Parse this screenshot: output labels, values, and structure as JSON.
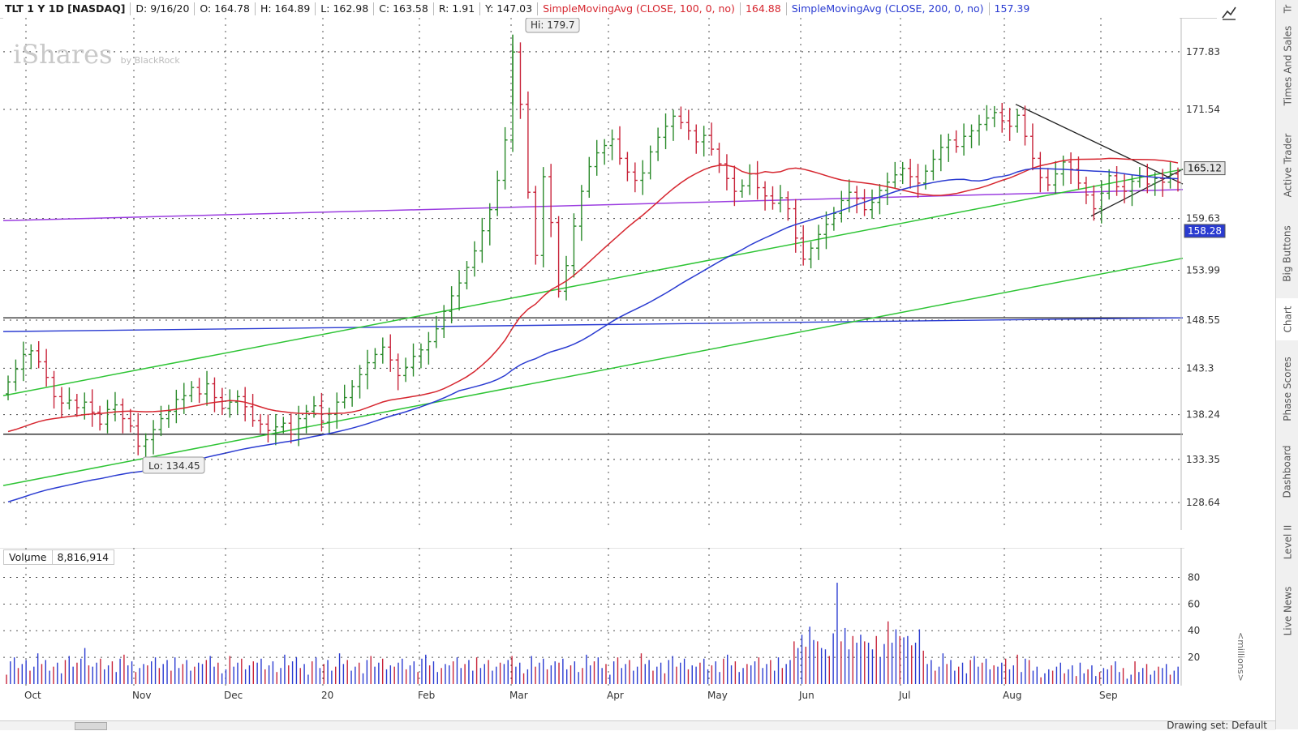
{
  "header": {
    "symbol": "TLT 1 Y 1D [NASDAQ]",
    "date": "D: 9/16/20",
    "open": "O: 164.78",
    "high": "H: 164.89",
    "low": "L: 162.98",
    "close": "C: 163.58",
    "range": "R: 1.91",
    "y": "Y: 147.03",
    "sma100_label": "SimpleMovingAvg (CLOSE, 100, 0, no)",
    "sma100_value": "164.88",
    "sma200_label": "SimpleMovingAvg (CLOSE, 200, 0, no)",
    "sma200_value": "157.39"
  },
  "watermark": {
    "brand": "iShares",
    "sub": "by BlackRock"
  },
  "price_axis": {
    "ticks": [
      "177.83",
      "171.54",
      "159.63",
      "153.99",
      "148.55",
      "143.3",
      "138.24",
      "133.35",
      "128.64"
    ],
    "current_price": "165.12",
    "sma_marker": "158.28"
  },
  "annotations": {
    "high": "Hi: 179.7",
    "low": "Lo: 134.45"
  },
  "x_axis": {
    "months": [
      "Oct",
      "Nov",
      "Dec",
      "20",
      "Feb",
      "Mar",
      "Apr",
      "May",
      "Jun",
      "Jul",
      "Aug",
      "Sep"
    ]
  },
  "volume": {
    "label": "Volume",
    "value": "8,816,914",
    "ticks": [
      "80",
      "60",
      "40",
      "20"
    ],
    "unit": "<millions>"
  },
  "right_tabs": [
    "Times And Sales",
    "Active Trader",
    "Big Buttons",
    "Chart",
    "Phase Scores",
    "Dashboard",
    "Level II",
    "Live News"
  ],
  "right_tabs_top_partial": "Tr",
  "bottom": {
    "drawing_set": "Drawing set: Default"
  },
  "colors": {
    "sma100": "#d6262f",
    "sma200": "#2a3bd1",
    "trend_green": "#2ec435",
    "trend_purple": "#9b3de0",
    "up": "#2a8a2a",
    "down": "#c8243a",
    "price_tag_bg": "#2a3bd1"
  },
  "chart_data": {
    "type": "candlestick",
    "symbol": "TLT",
    "price_range": [
      126,
      181
    ],
    "high": 179.7,
    "low": 134.45,
    "bars": [
      [
        140.5,
        141.8
      ],
      [
        141.8,
        143.2
      ],
      [
        143.2,
        144.8
      ],
      [
        144.8,
        145.2
      ],
      [
        145.2,
        144.0
      ],
      [
        144.0,
        142.3
      ],
      [
        142.3,
        140.2
      ],
      [
        140.2,
        139.5
      ],
      [
        139.5,
        139.8
      ],
      [
        139.8,
        139.0
      ],
      [
        139.0,
        139.6
      ],
      [
        139.6,
        138.5
      ],
      [
        138.5,
        137.2
      ],
      [
        137.2,
        138.8
      ],
      [
        138.8,
        139.3
      ],
      [
        139.3,
        137.8
      ],
      [
        137.8,
        137.0
      ],
      [
        137.0,
        134.8
      ],
      [
        134.8,
        135.5
      ],
      [
        135.5,
        136.6
      ],
      [
        136.6,
        137.8
      ],
      [
        137.8,
        138.6
      ],
      [
        138.6,
        139.9
      ],
      [
        139.9,
        140.3
      ],
      [
        140.3,
        141.2
      ],
      [
        141.2,
        140.5
      ],
      [
        140.5,
        141.6
      ],
      [
        141.6,
        140.1
      ],
      [
        140.1,
        138.9
      ],
      [
        138.9,
        139.6
      ],
      [
        139.6,
        140.2
      ],
      [
        140.2,
        139.1
      ],
      [
        139.1,
        137.6
      ],
      [
        137.6,
        137.2
      ],
      [
        137.2,
        136.5
      ],
      [
        136.5,
        136.9
      ],
      [
        136.9,
        137.3
      ],
      [
        137.3,
        136.1
      ],
      [
        136.1,
        137.8
      ],
      [
        137.8,
        138.6
      ],
      [
        138.6,
        139.2
      ],
      [
        139.2,
        137.4
      ],
      [
        137.4,
        138.3
      ],
      [
        138.3,
        139.6
      ],
      [
        139.6,
        140.1
      ],
      [
        140.1,
        141.3
      ],
      [
        141.3,
        142.6
      ],
      [
        142.6,
        143.9
      ],
      [
        143.9,
        144.8
      ],
      [
        144.8,
        145.6
      ],
      [
        145.6,
        144.2
      ],
      [
        144.2,
        142.5
      ],
      [
        142.5,
        143.4
      ],
      [
        143.4,
        144.6
      ],
      [
        144.6,
        145.3
      ],
      [
        145.3,
        146.2
      ],
      [
        146.2,
        147.6
      ],
      [
        147.6,
        149.5
      ],
      [
        149.5,
        151.2
      ],
      [
        151.2,
        152.6
      ],
      [
        152.6,
        154.3
      ],
      [
        154.3,
        156.1
      ],
      [
        156.1,
        158.3
      ],
      [
        158.3,
        160.6
      ],
      [
        160.6,
        163.8
      ],
      [
        163.8,
        168.2
      ],
      [
        168.2,
        177.8
      ],
      [
        177.8,
        172.1
      ],
      [
        172.1,
        162.5
      ],
      [
        162.5,
        155.6
      ],
      [
        155.6,
        164.2
      ],
      [
        164.2,
        159.2
      ],
      [
        159.2,
        151.7
      ],
      [
        151.7,
        154.5
      ],
      [
        154.5,
        158.8
      ],
      [
        158.8,
        162.6
      ],
      [
        162.6,
        165.3
      ],
      [
        165.3,
        166.8
      ],
      [
        166.8,
        167.6
      ],
      [
        167.6,
        168.3
      ],
      [
        168.3,
        166.2
      ],
      [
        166.2,
        164.7
      ],
      [
        164.7,
        163.8
      ],
      [
        163.8,
        164.6
      ],
      [
        164.6,
        166.9
      ],
      [
        166.9,
        168.5
      ],
      [
        168.5,
        169.7
      ],
      [
        169.7,
        170.8
      ],
      [
        170.8,
        170.1
      ],
      [
        170.1,
        169.2
      ],
      [
        169.2,
        168.0
      ],
      [
        168.0,
        168.7
      ],
      [
        168.7,
        167.2
      ],
      [
        167.2,
        165.6
      ],
      [
        165.6,
        164.0
      ],
      [
        164.0,
        162.6
      ],
      [
        162.6,
        163.2
      ],
      [
        163.2,
        164.5
      ],
      [
        164.5,
        163.0
      ],
      [
        163.0,
        162.1
      ],
      [
        162.1,
        161.3
      ],
      [
        161.3,
        161.9
      ],
      [
        161.9,
        160.7
      ],
      [
        160.7,
        157.5
      ],
      [
        157.5,
        155.2
      ],
      [
        155.2,
        156.4
      ],
      [
        156.4,
        157.9
      ],
      [
        157.9,
        159.0
      ],
      [
        159.0,
        160.2
      ],
      [
        160.2,
        161.6
      ],
      [
        161.6,
        162.5
      ],
      [
        162.5,
        161.8
      ],
      [
        161.8,
        160.6
      ],
      [
        160.6,
        161.4
      ],
      [
        161.4,
        162.7
      ],
      [
        162.7,
        163.6
      ],
      [
        163.6,
        164.4
      ],
      [
        164.4,
        165.1
      ],
      [
        165.1,
        164.2
      ],
      [
        164.2,
        163.5
      ],
      [
        163.5,
        164.8
      ],
      [
        164.8,
        166.1
      ],
      [
        166.1,
        167.4
      ],
      [
        167.4,
        168.2
      ],
      [
        168.2,
        167.5
      ],
      [
        167.5,
        168.6
      ],
      [
        168.6,
        169.2
      ],
      [
        169.2,
        169.9
      ],
      [
        169.9,
        170.6
      ],
      [
        170.6,
        171.2
      ],
      [
        171.2,
        170.3
      ],
      [
        170.3,
        169.7
      ],
      [
        169.7,
        170.9
      ],
      [
        170.9,
        168.6
      ],
      [
        168.6,
        166.2
      ],
      [
        166.2,
        164.1
      ],
      [
        164.1,
        163.3
      ],
      [
        163.3,
        164.5
      ],
      [
        164.5,
        165.8
      ],
      [
        165.8,
        165.0
      ],
      [
        165.0,
        163.5
      ],
      [
        163.5,
        162.2
      ],
      [
        162.2,
        160.7
      ],
      [
        160.7,
        162.4
      ],
      [
        162.4,
        164.3
      ],
      [
        164.3,
        163.1
      ],
      [
        163.1,
        162.6
      ],
      [
        162.6,
        163.7
      ],
      [
        163.7,
        164.2
      ],
      [
        164.2,
        163.4
      ],
      [
        163.4,
        164.0
      ],
      [
        164.0,
        163.6
      ],
      [
        163.6,
        164.5
      ],
      [
        164.5,
        163.58
      ]
    ]
  }
}
